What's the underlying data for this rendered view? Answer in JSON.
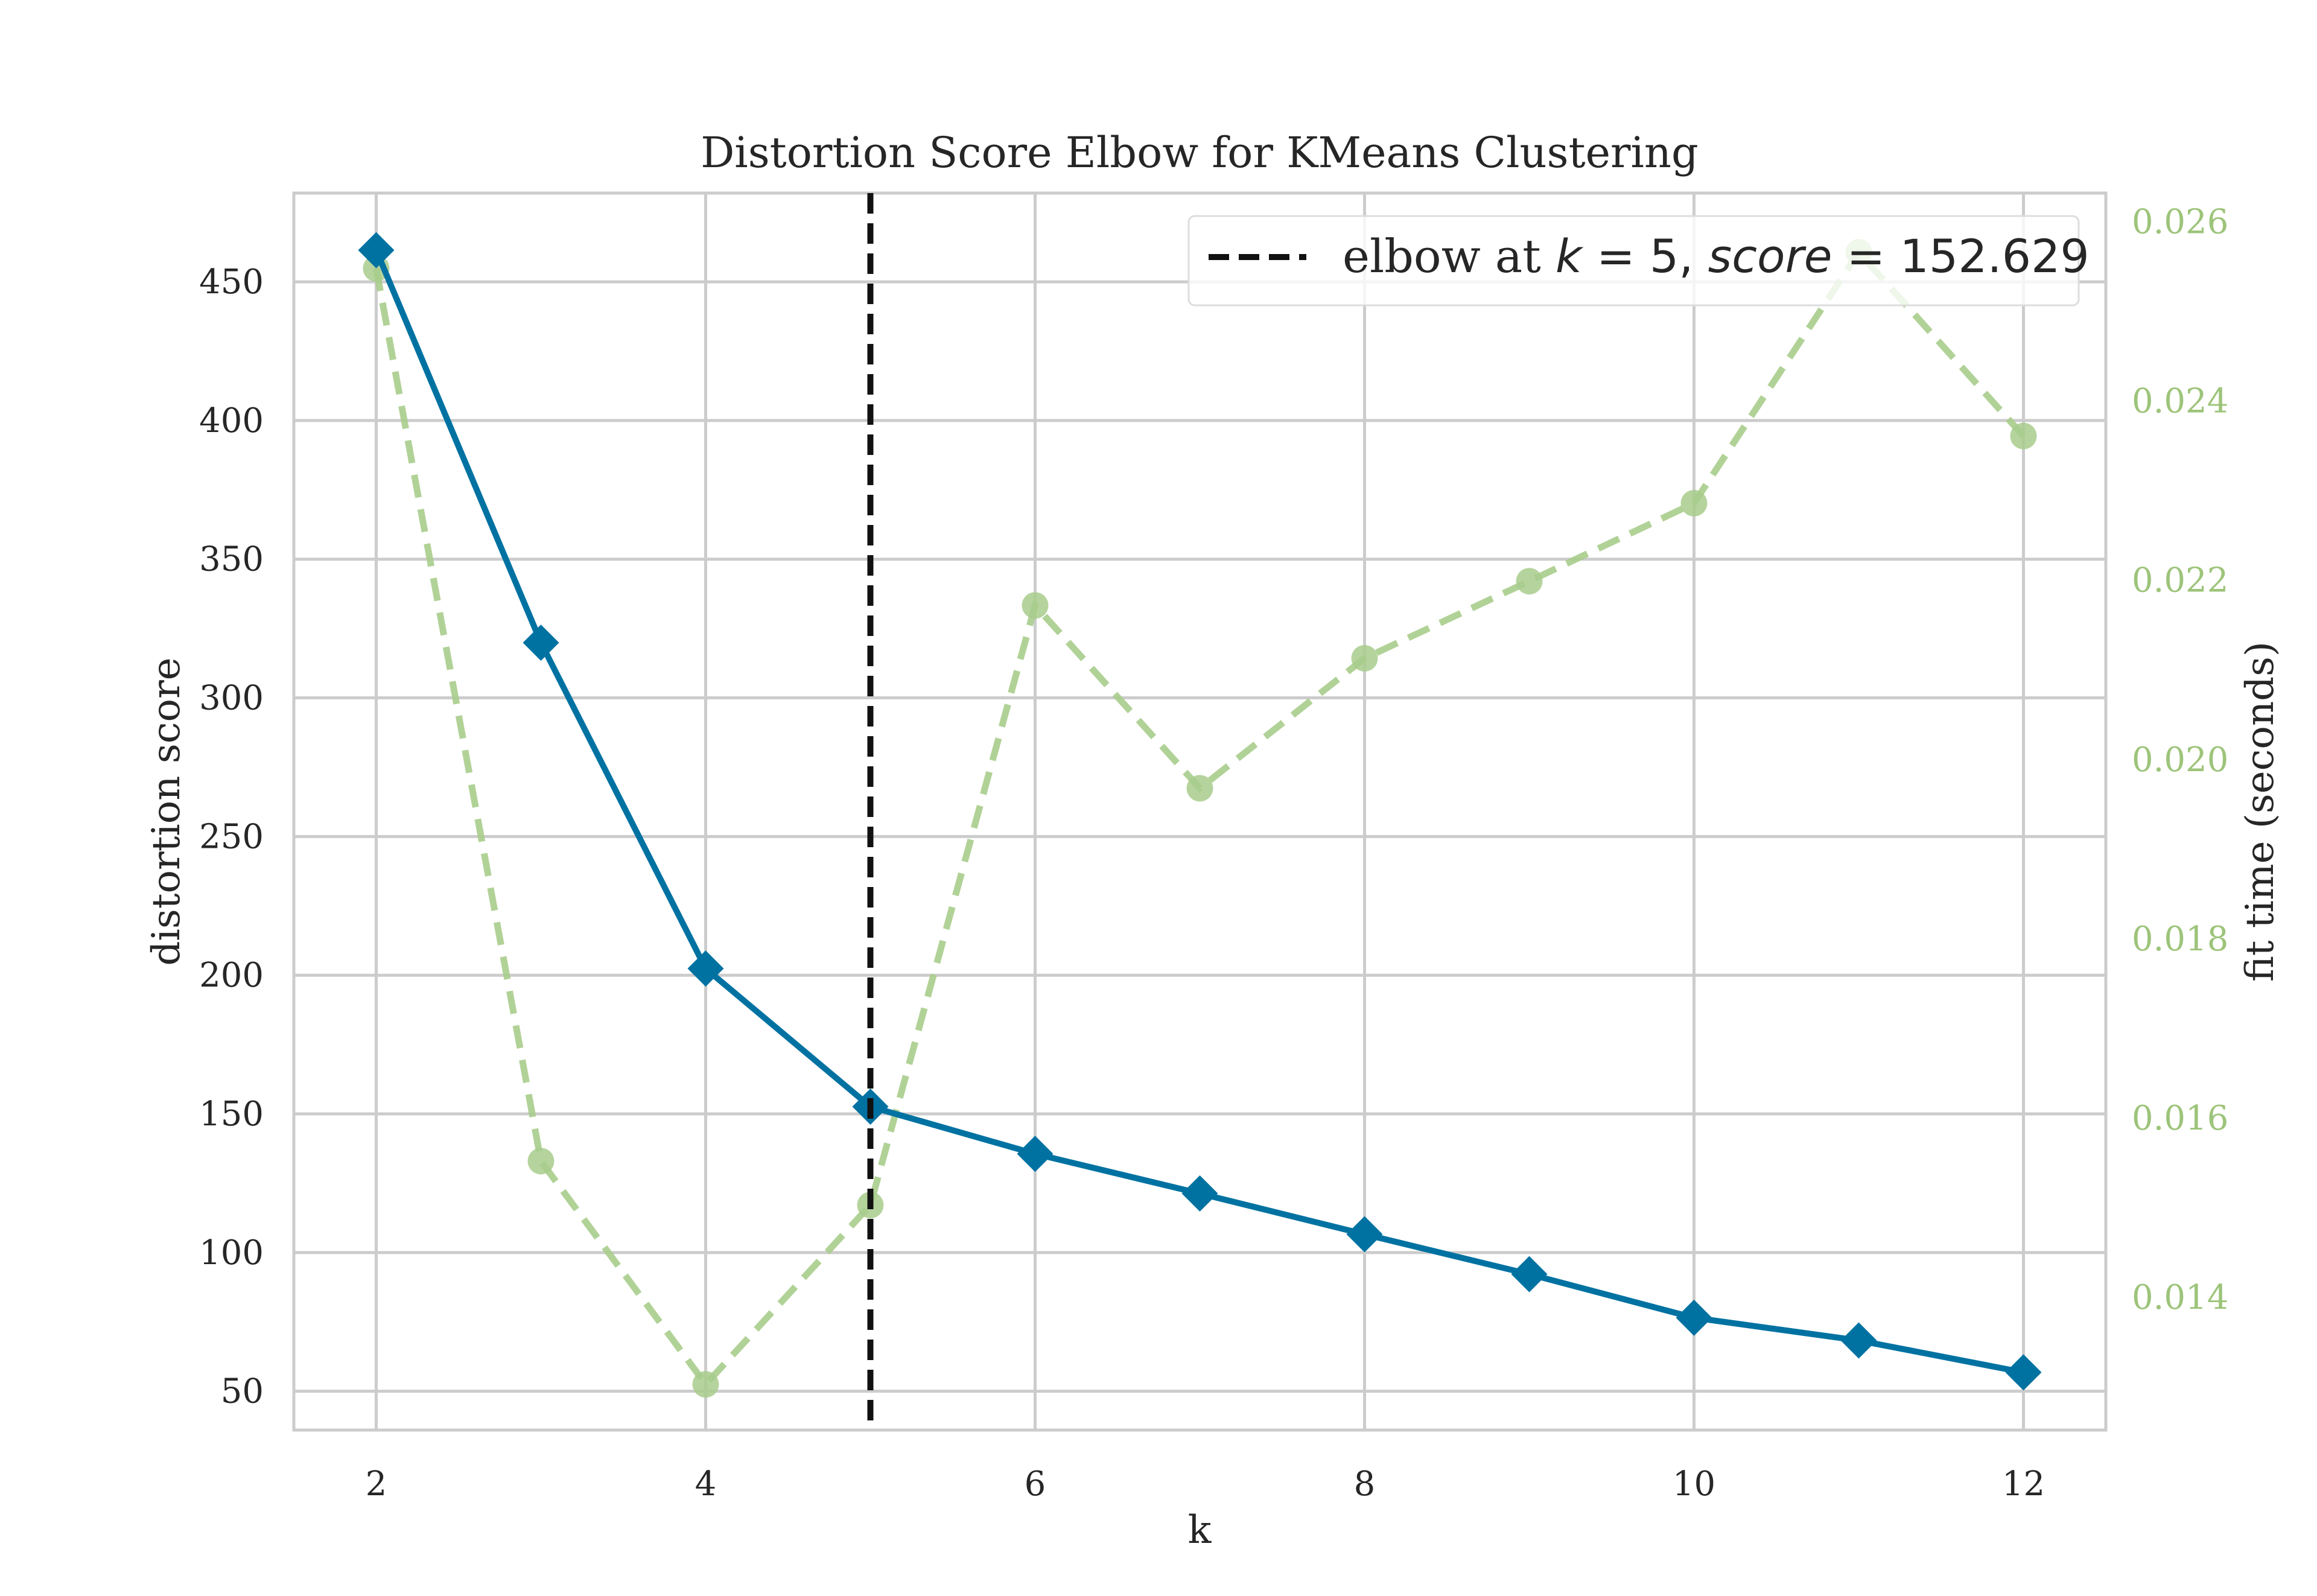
{
  "chart_data": {
    "type": "line",
    "title": "Distortion Score Elbow for KMeans Clustering",
    "xlabel": "k",
    "ylabel": "distortion score",
    "y2label": "fit time (seconds)",
    "x": [
      2,
      3,
      4,
      5,
      6,
      7,
      8,
      9,
      10,
      11,
      12
    ],
    "xlim": [
      1.5,
      12.5
    ],
    "xticks": [
      "2",
      "4",
      "6",
      "8",
      "10",
      "12"
    ],
    "ylim": [
      36,
      482
    ],
    "yticks": [
      "50",
      "100",
      "150",
      "200",
      "250",
      "300",
      "350",
      "400",
      "450"
    ],
    "y2lim": [
      0.01252,
      0.02632
    ],
    "y2ticks": [
      "0.014",
      "0.016",
      "0.018",
      "0.020",
      "0.022",
      "0.024",
      "0.026"
    ],
    "grid": true,
    "series": [
      {
        "axis": "left",
        "color": "#0072a2",
        "marker": "diamond",
        "values": [
          461.4,
          319.9,
          202.4,
          152.6,
          135.6,
          121.3,
          106.6,
          92.2,
          76.5,
          68.3,
          56.8
        ]
      },
      {
        "axis": "right",
        "color": "#a8cd8c",
        "marker": "circle",
        "dashed": true,
        "values": [
          0.02548,
          0.01552,
          0.01303,
          0.01503,
          0.02172,
          0.01968,
          0.02113,
          0.02199,
          0.02286,
          0.02566,
          0.02361
        ]
      }
    ],
    "elbow": {
      "k": 5,
      "score": 152.629,
      "color": "#111111",
      "legend": {
        "prefix": "elbow at ",
        "k_var": "k",
        "k_eq": " = 5, ",
        "score_var": "score",
        "score_eq": " = 152.629"
      },
      "legend_position": "upper right"
    },
    "colors": {
      "right_axis_text": "#9dc47a",
      "grid": "#cccccc",
      "frame": "#cccccc"
    }
  }
}
